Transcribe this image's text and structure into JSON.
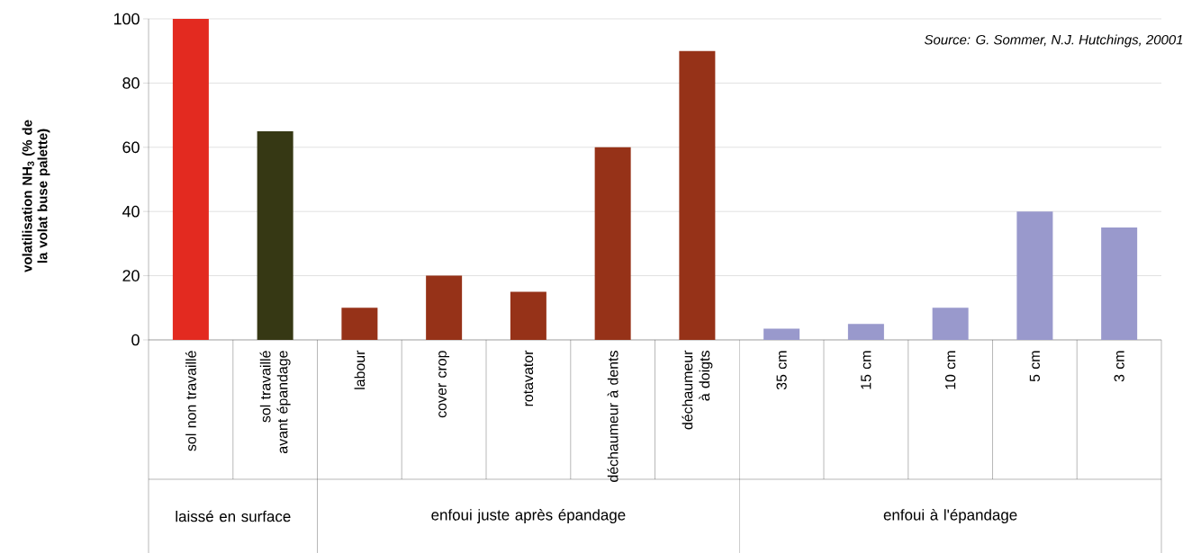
{
  "chart_data": {
    "type": "bar",
    "ylabel": "volatilisation NH$_{3}$ (% de la volat buse palette)",
    "categories": [
      "sol non travaillé",
      "sol travaillé avant épandage",
      "labour",
      "cover crop",
      "rotavator",
      "déchaumeur à dents",
      "déchaumeur à doigts",
      "35 cm",
      "15 cm",
      "10 cm",
      "5 cm",
      "3 cm"
    ],
    "values": [
      100,
      65,
      10,
      20,
      15,
      60,
      90,
      3.5,
      5,
      10,
      40,
      35
    ],
    "colors": [
      "#e32a20",
      "#363814",
      "#963218",
      "#963218",
      "#963218",
      "#963218",
      "#963218",
      "#9999cc",
      "#9999cc",
      "#9999cc",
      "#9999cc",
      "#9999cc"
    ],
    "ylim": [
      0,
      100
    ],
    "yticks": [
      0,
      20,
      40,
      60,
      80,
      100
    ],
    "grid": "y",
    "annotations": [
      "Source: G. Sommer, N.J. Hutchings, 20001",
      "laissé en surface",
      "enfoui juste après épandage",
      "enfoui à l'épandage"
    ]
  }
}
